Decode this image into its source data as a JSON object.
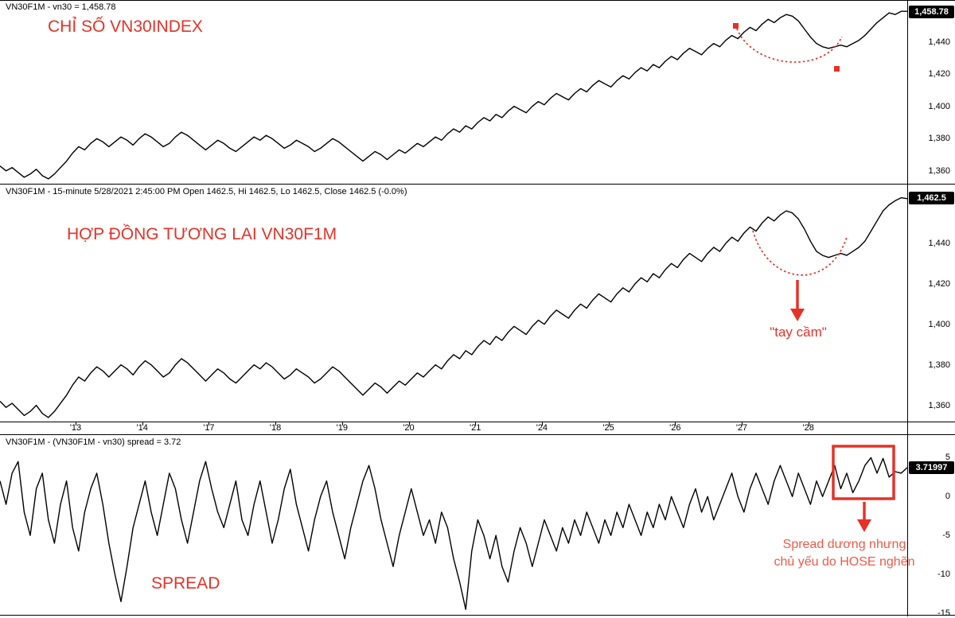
{
  "colors": {
    "accent_red": "#e53228",
    "note_red": "#ef5a49",
    "line": "#000000",
    "badge_bg": "#000000",
    "badge_text": "#ffffff",
    "background": "#ffffff"
  },
  "annotations": {
    "panel1_label": "CHỈ SỐ VN30INDEX",
    "panel2_label": "HỢP ĐỒNG TƯƠNG LAI VN30F1M",
    "panel3_label": "SPREAD",
    "handle_label": "\"tay cầm\"",
    "spread_note_line1": "Spread dương nhưng",
    "spread_note_line2": "chủ yếu do HOSE nghẽn"
  },
  "chart_data": {
    "type": "line",
    "x_labels": [
      "'13",
      "'14",
      "'17",
      "'18",
      "'19",
      "'20",
      "'21",
      "'24",
      "'25",
      "'26",
      "'27",
      "'28"
    ],
    "panels": [
      {
        "name": "vn30-index",
        "title": "VN30F1M - vn30 = 1,458.78",
        "last_value": 1458.78,
        "badge": "1,458.78",
        "ylim": [
          1352,
          1466
        ],
        "y_ticks": [
          {
            "label": "1,440",
            "value": 1440
          },
          {
            "label": "1,420",
            "value": 1420
          },
          {
            "label": "1,400",
            "value": 1400
          },
          {
            "label": "1,380",
            "value": 1380
          },
          {
            "label": "1,360",
            "value": 1360
          }
        ],
        "values": [
          1363,
          1360,
          1362,
          1359,
          1356,
          1358,
          1361,
          1357,
          1355,
          1358,
          1362,
          1366,
          1371,
          1375,
          1373,
          1377,
          1380,
          1378,
          1375,
          1378,
          1381,
          1379,
          1376,
          1380,
          1383,
          1381,
          1378,
          1375,
          1377,
          1381,
          1384,
          1382,
          1379,
          1376,
          1373,
          1376,
          1379,
          1377,
          1374,
          1372,
          1375,
          1378,
          1381,
          1379,
          1382,
          1380,
          1377,
          1374,
          1376,
          1379,
          1377,
          1375,
          1372,
          1374,
          1377,
          1380,
          1378,
          1375,
          1372,
          1369,
          1366,
          1369,
          1372,
          1370,
          1367,
          1370,
          1373,
          1371,
          1374,
          1377,
          1375,
          1378,
          1381,
          1379,
          1383,
          1386,
          1384,
          1388,
          1386,
          1390,
          1393,
          1391,
          1395,
          1393,
          1397,
          1400,
          1398,
          1396,
          1400,
          1403,
          1401,
          1405,
          1408,
          1406,
          1404,
          1408,
          1411,
          1409,
          1413,
          1416,
          1414,
          1412,
          1416,
          1419,
          1417,
          1421,
          1424,
          1422,
          1426,
          1424,
          1428,
          1431,
          1429,
          1433,
          1436,
          1434,
          1432,
          1436,
          1439,
          1437,
          1441,
          1444,
          1442,
          1446,
          1449,
          1447,
          1451,
          1454,
          1452,
          1455,
          1457,
          1456,
          1453,
          1448,
          1443,
          1439,
          1437,
          1436,
          1437,
          1438,
          1437,
          1439,
          1441,
          1444,
          1448,
          1452,
          1455,
          1458,
          1457,
          1459,
          1459
        ]
      },
      {
        "name": "vn30f1m-futures",
        "title": "VN30F1M - 15-minute 5/28/2021 2:45:00 PM Open 1462.5, Hi 1462.5, Lo 1462.5, Close 1462.5 (-0.0%)",
        "last_value": 1462.5,
        "badge": "1,462.5",
        "ylim": [
          1352,
          1469
        ],
        "y_ticks": [
          {
            "label": "1,440",
            "value": 1440
          },
          {
            "label": "1,420",
            "value": 1420
          },
          {
            "label": "1,400",
            "value": 1400
          },
          {
            "label": "1,380",
            "value": 1380
          },
          {
            "label": "1,360",
            "value": 1360
          }
        ],
        "values": [
          1362,
          1359,
          1361,
          1358,
          1355,
          1357,
          1360,
          1356,
          1354,
          1357,
          1361,
          1365,
          1370,
          1374,
          1372,
          1376,
          1379,
          1377,
          1374,
          1377,
          1380,
          1378,
          1375,
          1379,
          1382,
          1380,
          1377,
          1374,
          1376,
          1380,
          1383,
          1381,
          1378,
          1375,
          1372,
          1375,
          1378,
          1376,
          1373,
          1371,
          1374,
          1377,
          1380,
          1378,
          1381,
          1379,
          1376,
          1373,
          1375,
          1378,
          1376,
          1374,
          1371,
          1373,
          1376,
          1379,
          1377,
          1374,
          1371,
          1368,
          1365,
          1368,
          1371,
          1369,
          1366,
          1369,
          1372,
          1370,
          1373,
          1376,
          1374,
          1377,
          1380,
          1378,
          1382,
          1385,
          1383,
          1387,
          1385,
          1389,
          1392,
          1390,
          1394,
          1392,
          1396,
          1399,
          1397,
          1395,
          1399,
          1402,
          1400,
          1404,
          1407,
          1405,
          1403,
          1407,
          1410,
          1408,
          1412,
          1415,
          1413,
          1411,
          1415,
          1418,
          1416,
          1420,
          1423,
          1421,
          1425,
          1423,
          1427,
          1430,
          1428,
          1432,
          1435,
          1433,
          1431,
          1435,
          1438,
          1436,
          1440,
          1443,
          1441,
          1445,
          1448,
          1446,
          1450,
          1453,
          1451,
          1454,
          1456,
          1455,
          1452,
          1447,
          1441,
          1436,
          1434,
          1433,
          1434,
          1435,
          1434,
          1436,
          1438,
          1441,
          1446,
          1451,
          1456,
          1459,
          1461,
          1462.5,
          1462
        ]
      },
      {
        "name": "spread",
        "title": "VN30F1M - (VN30F1M - vn30) spread = 3.72",
        "last_value": 3.72,
        "badge": "3.71997",
        "ylim": [
          -15.2,
          7.9
        ],
        "y_ticks": [
          {
            "label": "5",
            "value": 5
          },
          {
            "label": "0",
            "value": 0
          },
          {
            "label": "-5",
            "value": -5
          },
          {
            "label": "-10",
            "value": -10
          },
          {
            "label": "-15",
            "value": -15
          }
        ],
        "values": [
          2,
          -1,
          3,
          4.5,
          -2,
          -5,
          1,
          3,
          -3,
          -6,
          -1,
          2,
          -4,
          -7,
          -2,
          1,
          3,
          -1,
          -6,
          -10,
          -13.5,
          -9,
          -4,
          -1,
          2,
          -2,
          -5,
          -1,
          3,
          1,
          -3,
          -6,
          -2,
          2,
          4.5,
          1,
          -2,
          -4,
          -1,
          2,
          -3,
          -5,
          -1,
          2,
          -2,
          -6,
          -3,
          1,
          3.5,
          -1,
          -4,
          -7,
          -3,
          0,
          2,
          -2,
          -5,
          -8,
          -4,
          -1,
          2,
          4,
          1,
          -3,
          -6,
          -9,
          -5,
          -2,
          1,
          -2,
          -5,
          -3,
          -6,
          -2,
          -4,
          -8,
          -11,
          -14.5,
          -7,
          -3,
          -5,
          -8,
          -5,
          -9,
          -11,
          -7,
          -4,
          -6,
          -9,
          -6,
          -3,
          -5,
          -7,
          -4,
          -6,
          -3,
          -5,
          -2,
          -4,
          -6,
          -3,
          -5,
          -2,
          -4,
          -1,
          -3,
          -5,
          -2,
          -4,
          -1,
          -3,
          0,
          -2,
          -4,
          -1,
          1,
          -2,
          0,
          -3,
          -1,
          1,
          3,
          0,
          -2,
          1,
          3,
          1,
          -1,
          2,
          4,
          2,
          0,
          3,
          1,
          -1,
          2,
          0,
          2,
          4,
          1,
          3,
          0.5,
          2,
          4,
          5,
          3,
          4.9,
          2.5,
          3.2,
          3,
          3.72
        ]
      }
    ]
  }
}
